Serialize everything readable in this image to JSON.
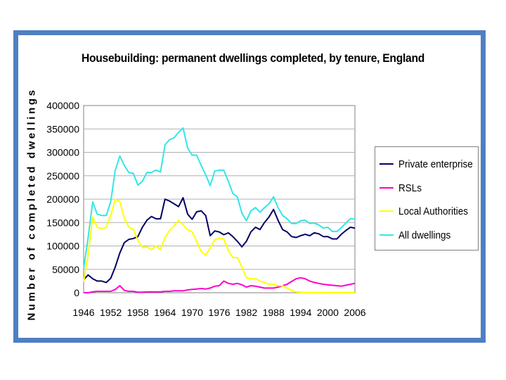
{
  "chart_data": {
    "type": "line",
    "title": "Housebuilding: permanent dwellings completed, by tenure, England",
    "xlabel": "",
    "ylabel": "Number of completed dwellings",
    "ylim": [
      0,
      400000
    ],
    "yticks": [
      0,
      50000,
      100000,
      150000,
      200000,
      250000,
      300000,
      350000,
      400000
    ],
    "ytick_labels": [
      "0",
      "50000",
      "100000",
      "150000",
      "200000",
      "250000",
      "300000",
      "350000",
      "400000"
    ],
    "xlim": [
      1946,
      2006
    ],
    "xticks": [
      1946,
      1952,
      1958,
      1964,
      1970,
      1976,
      1982,
      1988,
      1994,
      2000,
      2006
    ],
    "xtick_labels": [
      "1946",
      "1952",
      "1958",
      "1964",
      "1970",
      "1976",
      "1982",
      "1988",
      "1994",
      "2000",
      "2006"
    ],
    "grid": true,
    "legend_position": "right",
    "x": [
      1946,
      1947,
      1948,
      1949,
      1950,
      1951,
      1952,
      1953,
      1954,
      1955,
      1956,
      1957,
      1958,
      1959,
      1960,
      1961,
      1962,
      1963,
      1964,
      1965,
      1966,
      1967,
      1968,
      1969,
      1970,
      1971,
      1972,
      1973,
      1974,
      1975,
      1976,
      1977,
      1978,
      1979,
      1980,
      1981,
      1982,
      1983,
      1984,
      1985,
      1986,
      1987,
      1988,
      1989,
      1990,
      1991,
      1992,
      1993,
      1994,
      1995,
      1996,
      1997,
      1998,
      1999,
      2000,
      2001,
      2002,
      2003,
      2004,
      2005,
      2006
    ],
    "series": [
      {
        "name": "Private enterprise",
        "color": "#000066",
        "values": [
          28000,
          38000,
          30000,
          25000,
          25000,
          22000,
          31000,
          55000,
          85000,
          107000,
          114000,
          116000,
          120000,
          140000,
          155000,
          163000,
          158000,
          158000,
          200000,
          196000,
          190000,
          184000,
          203000,
          168000,
          157000,
          173000,
          175000,
          165000,
          122000,
          132000,
          130000,
          124000,
          128000,
          120000,
          110000,
          98000,
          110000,
          130000,
          140000,
          135000,
          150000,
          162000,
          178000,
          155000,
          135000,
          130000,
          120000,
          118000,
          122000,
          125000,
          122000,
          128000,
          126000,
          120000,
          120000,
          115000,
          115000,
          125000,
          133000,
          140000,
          138000
        ]
      },
      {
        "name": "RSLs",
        "color": "#ff00cc",
        "values": [
          0,
          0,
          2000,
          3000,
          3000,
          3000,
          3000,
          7000,
          15000,
          5000,
          3000,
          3000,
          1000,
          1000,
          2000,
          2000,
          2000,
          2000,
          3000,
          3000,
          4000,
          4000,
          4000,
          6000,
          7000,
          8000,
          9000,
          8000,
          10000,
          14000,
          15000,
          25000,
          20000,
          18000,
          20000,
          17000,
          12000,
          15000,
          14000,
          12000,
          10000,
          10000,
          10000,
          12000,
          15000,
          18000,
          24000,
          30000,
          32000,
          30000,
          25000,
          22000,
          20000,
          18000,
          17000,
          16000,
          15000,
          14000,
          16000,
          18000,
          20000
        ]
      },
      {
        "name": "Local Authorities",
        "color": "#ffff00",
        "values": [
          23000,
          80000,
          162000,
          140000,
          137000,
          140000,
          165000,
          200000,
          195000,
          160000,
          140000,
          135000,
          112000,
          97000,
          98000,
          92000,
          100000,
          92000,
          118000,
          133000,
          143000,
          155000,
          145000,
          135000,
          130000,
          110000,
          88000,
          80000,
          96000,
          113000,
          117000,
          115000,
          90000,
          75000,
          75000,
          55000,
          32000,
          30000,
          30000,
          25000,
          22000,
          18000,
          18000,
          15000,
          15000,
          10000,
          5000,
          1500,
          1000,
          500,
          500,
          500,
          300,
          200,
          200,
          200,
          200,
          200,
          200,
          200,
          200
        ]
      },
      {
        "name": "All dwellings",
        "color": "#33e6e6",
        "values": [
          51000,
          118000,
          194000,
          168000,
          165000,
          165000,
          195000,
          262000,
          292000,
          272000,
          257000,
          255000,
          230000,
          238000,
          257000,
          257000,
          262000,
          258000,
          316000,
          327000,
          331000,
          343000,
          352000,
          309000,
          294000,
          294000,
          272000,
          252000,
          229000,
          260000,
          262000,
          262000,
          238000,
          212000,
          205000,
          170000,
          154000,
          175000,
          182000,
          172000,
          182000,
          190000,
          205000,
          182000,
          165000,
          158000,
          148000,
          148000,
          154000,
          155000,
          148000,
          149000,
          145000,
          138000,
          140000,
          131000,
          131000,
          139000,
          149000,
          158000,
          158000
        ]
      }
    ]
  }
}
